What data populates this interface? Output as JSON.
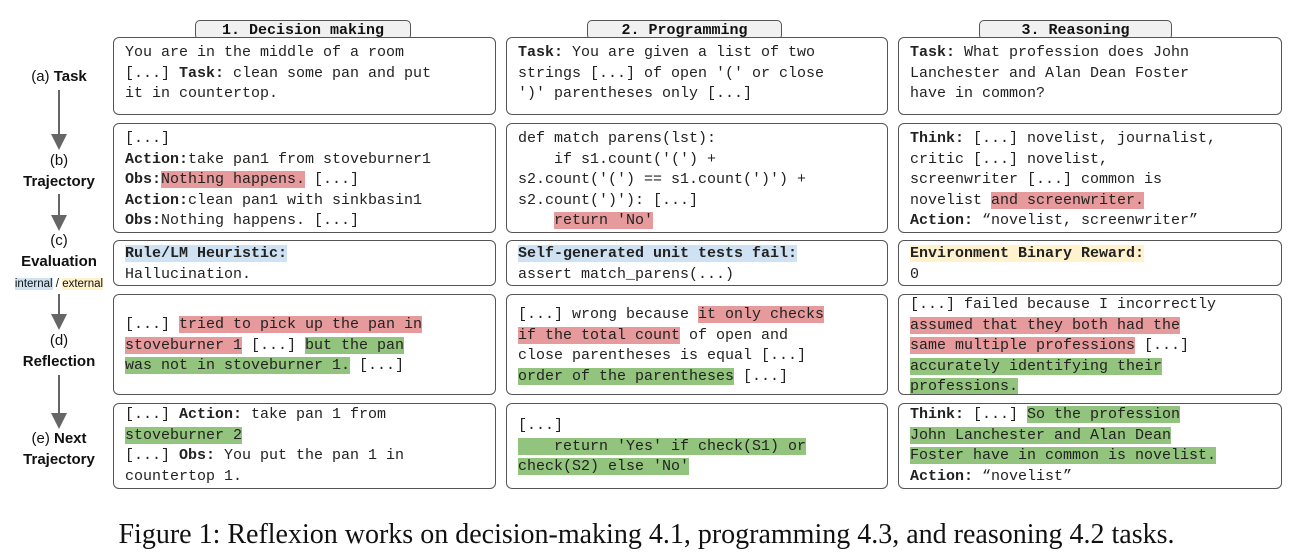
{
  "columns": [
    {
      "header": "1. Decision making"
    },
    {
      "header": "2. Programming"
    },
    {
      "header": "3. Reasoning"
    }
  ],
  "row_labels": {
    "task": {
      "prefix": "(a) ",
      "name": "Task"
    },
    "trajectory": {
      "prefix": "(b)",
      "name": "Trajectory"
    },
    "evaluation": {
      "prefix": "(c)",
      "name": "Evaluation",
      "internal": "internal",
      "sep": " / ",
      "external": "external"
    },
    "reflection": {
      "prefix": "(d)",
      "name": "Reflection"
    },
    "next": {
      "prefix": "(e) ",
      "name_1": "Next",
      "name_2": "Trajectory"
    }
  },
  "cells": {
    "dm_task": {
      "l1": "You are in the middle of a room",
      "l2a": "[...] ",
      "l2b": "Task:",
      "l2c": " clean some pan and put",
      "l3": "it in countertop."
    },
    "pr_task": {
      "l1a": "Task:",
      "l1b": " You are given a list of two",
      "l2": "strings [...] of open '(' or close",
      "l3": "')' parentheses only [...]"
    },
    "rs_task": {
      "l1a": "Task:",
      "l1b": " What profession does John",
      "l2": "Lanchester and Alan Dean Foster",
      "l3": "have in common?"
    },
    "dm_traj": {
      "l1": "[...]",
      "l2a": "Action:",
      "l2b": "take pan1 from stoveburner1",
      "l3a": "Obs:",
      "l3b": "Nothing happens.",
      "l3c": " [...]",
      "l4a": "Action:",
      "l4b": "clean pan1 with sinkbasin1",
      "l5a": "Obs:",
      "l5b": "Nothing happens. [...]"
    },
    "pr_traj": {
      "l1": "def match parens(lst):",
      "l2": "    if s1.count('(') +",
      "l3": "s2.count('(') == s1.count(')') +",
      "l4": "s2.count(')'): [...]",
      "l5a": "    ",
      "l5b": "return 'No'"
    },
    "rs_traj": {
      "l1a": "Think:",
      "l1b": " [...] novelist, journalist,",
      "l2": "critic [...] novelist,",
      "l3": "screenwriter [...] common is",
      "l4a": "novelist ",
      "l4b": "and screenwriter.",
      "l5a": "Action:",
      "l5b": " “novelist, screenwriter”"
    },
    "dm_eval": {
      "l1": "Rule/LM Heuristic:",
      "l2": "Hallucination."
    },
    "pr_eval": {
      "l1": "Self-generated unit tests fail:",
      "l2": "assert match_parens(...)"
    },
    "rs_eval": {
      "l1": "Environment Binary Reward:",
      "l2": "0"
    },
    "dm_refl": {
      "l1a": "[...] ",
      "l1b": "tried to pick up the pan in",
      "l2a": "stoveburner 1",
      "l2b": " [...] ",
      "l2c": "but the pan",
      "l3a": "was not in stoveburner 1.",
      "l3b": " [...]"
    },
    "pr_refl": {
      "l1a": "[...] wrong because ",
      "l1b": "it only checks",
      "l2a": "if the total count",
      "l2b": " of open and",
      "l3": "close parentheses is equal [...]",
      "l4a": "order of the parentheses",
      "l4b": " [...]"
    },
    "rs_refl": {
      "l1": "[...] failed because I incorrectly",
      "l2": "assumed that they both had the",
      "l3a": "same multiple professions",
      "l3b": " [...]",
      "l4": "accurately identifying their",
      "l5": "professions."
    },
    "dm_next": {
      "l1a": "[...] ",
      "l1b": "Action:",
      "l1c": " take pan 1 from",
      "l2": "stoveburner 2",
      "l3a": "[...] ",
      "l3b": "Obs:",
      "l3c": " You put the pan 1 in",
      "l4": "countertop 1."
    },
    "pr_next": {
      "l1": "[...]",
      "l2a": "    ",
      "l2b": "return 'Yes' if check(S1) or",
      "l3": "check(S2) else 'No'"
    },
    "rs_next": {
      "l1a": "Think:",
      "l1b": " [...] ",
      "l1c": "So the profession",
      "l2": "John Lanchester and Alan Dean",
      "l3": "Foster have in common is novelist.",
      "l4a": "Action:",
      "l4b": " “novelist”"
    }
  },
  "caption": "Figure 1: Reflexion works on decision-making 4.1, programming 4.3, and reasoning 4.2 tasks."
}
